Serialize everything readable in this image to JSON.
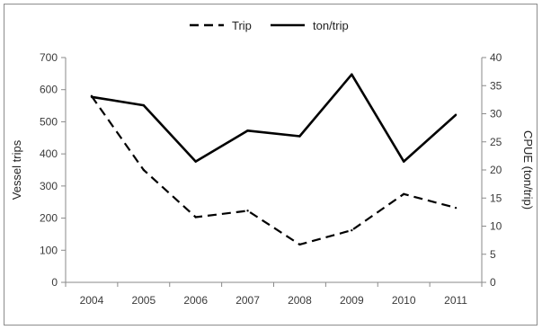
{
  "chart_data": {
    "type": "line",
    "x": [
      "2004",
      "2005",
      "2006",
      "2007",
      "2008",
      "2009",
      "2010",
      "2011"
    ],
    "series": [
      {
        "name": "Trip",
        "axis": "left",
        "line_style": "dashed",
        "values": [
          580,
          350,
          203,
          223,
          118,
          162,
          275,
          232
        ]
      },
      {
        "name": "ton/trip",
        "axis": "right",
        "line_style": "solid",
        "values": [
          33,
          31.5,
          21.5,
          27,
          26,
          37,
          21.5,
          29.8
        ]
      }
    ],
    "ylabel": "Vessel trips",
    "ylabel_right": "CPUE (ton/trip)",
    "ylim": [
      0,
      700
    ],
    "ylim_right": [
      0,
      40
    ],
    "yticks": [
      0,
      100,
      200,
      300,
      400,
      500,
      600,
      700
    ],
    "yticks_right": [
      0,
      5,
      10,
      15,
      20,
      25,
      30,
      35,
      40
    ],
    "grid": false,
    "legend_position": "top-center",
    "line_color": "#000000"
  }
}
